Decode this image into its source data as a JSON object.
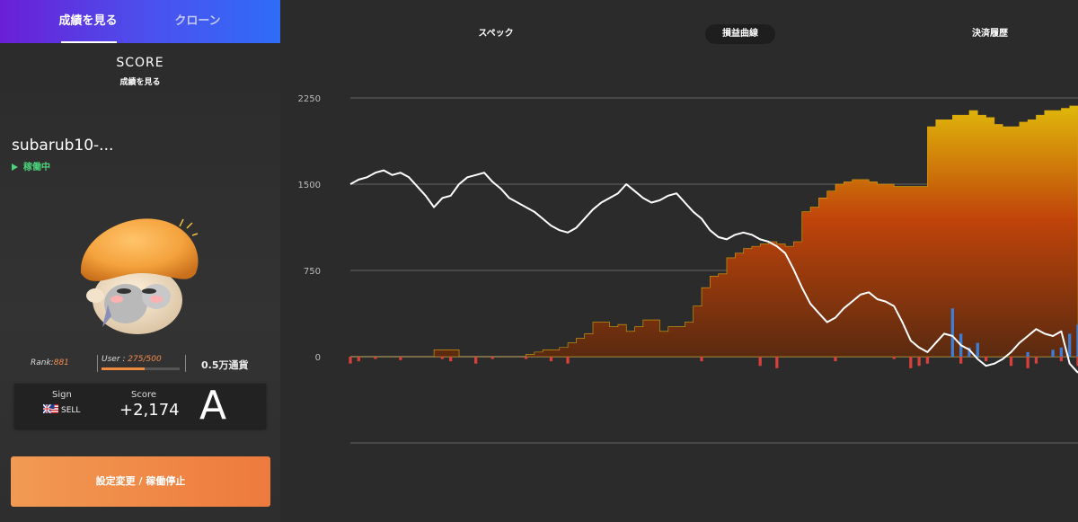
{
  "tabs": {
    "results": "成績を見る",
    "clone": "クローン",
    "underline_pct": 100
  },
  "score": {
    "title": "SCORE",
    "subtitle": "成績を見る"
  },
  "bot": {
    "name": "subarub10-...",
    "status": "稼働中",
    "status_color": "#4bd37a"
  },
  "mascot": {
    "icon": "mushroom-character-icon"
  },
  "stats": {
    "rank_label": "Rank:",
    "rank_value": "881",
    "user_label": "User : ",
    "user_value": "275/500",
    "user_progress": 0.55,
    "currency": "0.5万通貨"
  },
  "card": {
    "sign_label": "Sign",
    "sign_value": "SELL",
    "flag_icon": "gb-us-flag-icon",
    "score_label": "Score",
    "score_value": "+2,174",
    "grade": "A"
  },
  "action_button": "設定変更 / 稼働停止",
  "right_tabs": {
    "spec": "スペック",
    "pl_curve": "損益曲線",
    "history": "決済履歴"
  },
  "colors": {
    "accent": "#f08a3e",
    "tab_gradient_start": "#6a1fd6",
    "tab_gradient_end": "#2f6cf8",
    "area_top": "#e0b80a",
    "area_mid": "#c0440a",
    "area_bottom": "#5a2a10",
    "bar_negative": "#d9403a",
    "bar_positive": "#3d7fd6",
    "line": "#ffffff"
  },
  "chart_data": {
    "type": "area",
    "y_ticks": [
      "2250",
      "1500",
      "750",
      "0"
    ],
    "ylim": [
      -750,
      2250
    ],
    "grid": true,
    "series": [
      {
        "kind": "area",
        "values": [
          0,
          0,
          0,
          0,
          0,
          0,
          0,
          0,
          0,
          0,
          60,
          60,
          60,
          0,
          0,
          0,
          0,
          0,
          0,
          0,
          0,
          20,
          40,
          60,
          60,
          80,
          120,
          160,
          200,
          300,
          300,
          260,
          280,
          220,
          260,
          320,
          320,
          220,
          260,
          260,
          300,
          440,
          600,
          700,
          720,
          860,
          900,
          940,
          960,
          980,
          1000,
          980,
          960,
          1000,
          1260,
          1300,
          1380,
          1440,
          1500,
          1520,
          1540,
          1540,
          1520,
          1500,
          1500,
          1480,
          1480,
          1480,
          1480,
          2000,
          2060,
          2060,
          2100,
          2100,
          2140,
          2100,
          2080,
          2020,
          2000,
          2000,
          2040,
          2060,
          2100,
          2140,
          2140,
          2160,
          2180,
          2180
        ]
      },
      {
        "kind": "line",
        "values": [
          1500,
          1540,
          1560,
          1600,
          1620,
          1580,
          1600,
          1560,
          1480,
          1400,
          1300,
          1380,
          1400,
          1500,
          1560,
          1580,
          1600,
          1520,
          1460,
          1380,
          1340,
          1300,
          1260,
          1200,
          1140,
          1100,
          1080,
          1120,
          1200,
          1280,
          1340,
          1380,
          1420,
          1500,
          1440,
          1380,
          1340,
          1360,
          1400,
          1420,
          1340,
          1260,
          1200,
          1100,
          1040,
          1020,
          1060,
          1080,
          1060,
          1020,
          1000,
          960,
          900,
          760,
          600,
          460,
          380,
          300,
          340,
          420,
          480,
          540,
          560,
          500,
          480,
          440,
          300,
          140,
          80,
          40,
          120,
          200,
          180,
          100,
          60,
          -20,
          -80,
          -60,
          -20,
          40,
          120,
          180,
          240,
          200,
          180,
          220,
          -60,
          -140
        ]
      },
      {
        "kind": "bars",
        "values": [
          -60,
          -40,
          0,
          -20,
          0,
          0,
          -30,
          0,
          0,
          0,
          0,
          -20,
          -40,
          0,
          0,
          -60,
          0,
          -20,
          0,
          0,
          0,
          -20,
          0,
          0,
          -40,
          0,
          -60,
          0,
          0,
          0,
          0,
          0,
          0,
          0,
          0,
          0,
          0,
          0,
          0,
          0,
          0,
          0,
          -40,
          0,
          0,
          0,
          0,
          0,
          0,
          -80,
          0,
          -100,
          0,
          0,
          0,
          0,
          0,
          0,
          -40,
          0,
          0,
          0,
          0,
          0,
          0,
          -20,
          0,
          -100,
          -80,
          -60,
          0,
          0,
          0,
          -60,
          0,
          0,
          -40,
          0,
          0,
          -80,
          0,
          -100,
          -60,
          0,
          0,
          -40,
          0,
          -80
        ]
      },
      {
        "kind": "bars_positive",
        "values": [
          0,
          0,
          0,
          0,
          0,
          0,
          0,
          0,
          0,
          0,
          0,
          0,
          0,
          0,
          0,
          0,
          0,
          0,
          0,
          0,
          0,
          0,
          0,
          0,
          0,
          0,
          0,
          0,
          0,
          0,
          0,
          0,
          0,
          0,
          0,
          0,
          0,
          0,
          0,
          0,
          0,
          0,
          0,
          0,
          0,
          0,
          0,
          0,
          0,
          0,
          0,
          0,
          0,
          0,
          0,
          0,
          0,
          0,
          0,
          0,
          0,
          0,
          0,
          0,
          0,
          0,
          0,
          0,
          0,
          0,
          0,
          0,
          420,
          200,
          80,
          120,
          0,
          0,
          0,
          0,
          0,
          40,
          0,
          0,
          60,
          80,
          200,
          280
        ]
      }
    ]
  }
}
